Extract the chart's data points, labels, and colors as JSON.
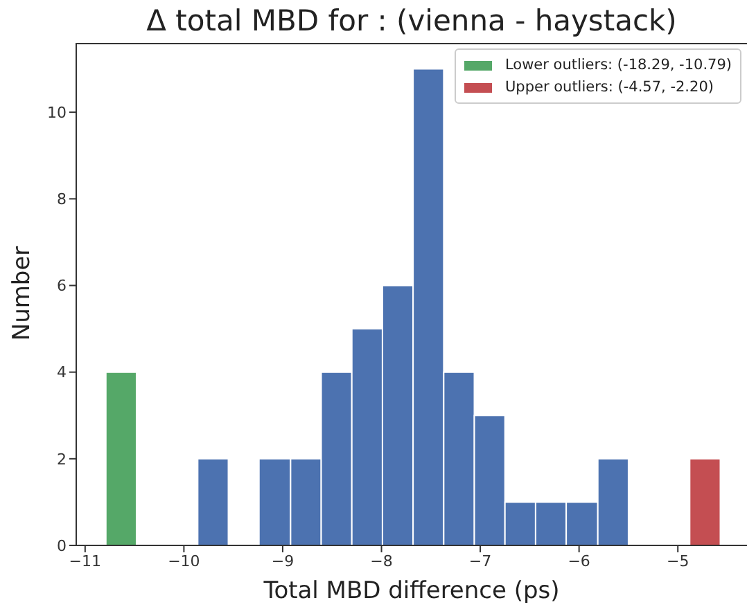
{
  "chart_data": {
    "type": "histogram",
    "title": "Δ total MBD for : (vienna - haystack)",
    "xlabel": "Total MBD difference (ps)",
    "ylabel": "Number",
    "bins": [
      -10.79,
      -10.48,
      -9.86,
      -9.55,
      -9.24,
      -8.92,
      -8.61,
      -8.3,
      -7.99,
      -7.68,
      -7.37,
      -7.06,
      -6.75,
      -6.44,
      -6.13,
      -5.81,
      -5.5,
      -4.88,
      -4.57
    ],
    "series": [
      {
        "color": "#4c72b0",
        "values": [
          null,
          0,
          2,
          0,
          2,
          2,
          4,
          5,
          6,
          11,
          4,
          3,
          1,
          1,
          1,
          2,
          0,
          null
        ]
      },
      {
        "name": "Lower outliers: (-18.29, -10.79)",
        "color": "#55a868",
        "values": [
          4,
          null,
          null,
          null,
          null,
          null,
          null,
          null,
          null,
          null,
          null,
          null,
          null,
          null,
          null,
          null,
          null,
          null
        ]
      },
      {
        "name": "Upper outliers: (-4.57, -2.20)",
        "color": "#c44e52",
        "values": [
          null,
          null,
          null,
          null,
          null,
          null,
          null,
          null,
          null,
          null,
          null,
          null,
          null,
          null,
          null,
          null,
          null,
          2
        ]
      }
    ],
    "xlim": [
      -11.09,
      -4.3
    ],
    "xticks": [
      {
        "value": -11,
        "label": "−11"
      },
      {
        "value": -10,
        "label": "−10"
      },
      {
        "value": -9,
        "label": "−9"
      },
      {
        "value": -8,
        "label": "−8"
      },
      {
        "value": -7,
        "label": "−7"
      },
      {
        "value": -6,
        "label": "−6"
      },
      {
        "value": -5,
        "label": "−5"
      }
    ],
    "ylim": [
      0,
      11.6
    ],
    "yticks": [
      0,
      2,
      4,
      6,
      8,
      10
    ],
    "grid": false,
    "legend": "top right"
  }
}
